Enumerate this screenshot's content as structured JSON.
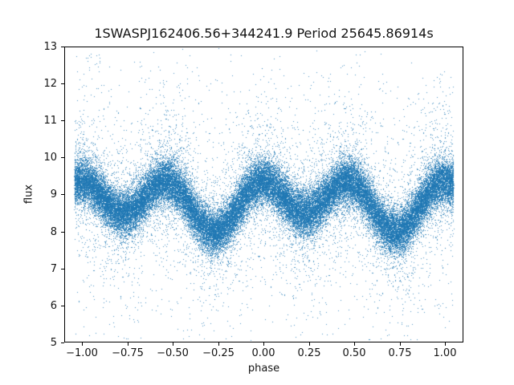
{
  "figure": {
    "title": "1SWASPJ162406.56+344241.9 Period 25645.86914s",
    "xlabel": "phase",
    "ylabel": "flux",
    "x_ticks": [
      "−1.00",
      "−0.75",
      "−0.50",
      "−0.25",
      "0.00",
      "0.25",
      "0.50",
      "0.75",
      "1.00"
    ],
    "y_ticks": [
      "13",
      "12",
      "11",
      "10",
      "9",
      "8",
      "7",
      "6",
      "5"
    ]
  },
  "chart_data": {
    "type": "scatter",
    "title": "1SWASPJ162406.56+344241.9 Period 25645.86914s",
    "xlabel": "phase",
    "ylabel": "flux",
    "xlim": [
      -1.1,
      1.1
    ],
    "ylim": [
      5,
      13
    ],
    "x_tick_values": [
      -1.0,
      -0.75,
      -0.5,
      -0.25,
      0.0,
      0.25,
      0.5,
      0.75,
      1.0
    ],
    "y_tick_values": [
      5,
      6,
      7,
      8,
      9,
      10,
      11,
      12,
      13
    ],
    "grid": false,
    "legend": null,
    "marker_color": "#1f77b4",
    "marker_alpha": 0.78,
    "marker_size_px": 1,
    "n_points_estimate": 58000,
    "data_phase_range": [
      -1.045,
      1.045
    ],
    "description": "Folded light curve of a contact eclipsing binary: dense blue band oscillating between flux ~8 and ~9.4 (double wave, period 0.5 in phase), with maxima near phase 0, ±0.5, ±1, deep minima near -0.27 and +0.73, shallow minima near -0.77 and +0.23, plus sparse noise outliers reaching flux ~12.7 above and ~5.2 below.",
    "band_center_samples": {
      "phase": [
        -1.0,
        -0.95,
        -0.9,
        -0.85,
        -0.8,
        -0.75,
        -0.7,
        -0.65,
        -0.6,
        -0.55,
        -0.5,
        -0.45,
        -0.4,
        -0.35,
        -0.3,
        -0.25,
        -0.2,
        -0.15,
        -0.1,
        -0.05,
        0.0,
        0.05,
        0.1,
        0.15,
        0.2,
        0.25,
        0.3,
        0.35,
        0.4,
        0.45,
        0.5,
        0.55,
        0.6,
        0.65,
        0.7,
        0.75,
        0.8,
        0.85,
        0.9,
        0.95,
        1.0
      ],
      "flux": [
        9.36,
        9.24,
        8.98,
        8.7,
        8.52,
        8.52,
        8.7,
        8.98,
        9.24,
        9.36,
        9.28,
        9.01,
        8.62,
        8.25,
        8.03,
        8.03,
        8.25,
        8.62,
        9.01,
        9.28,
        9.36,
        9.24,
        8.98,
        8.7,
        8.52,
        8.52,
        8.7,
        8.98,
        9.24,
        9.36,
        9.28,
        9.01,
        8.62,
        8.25,
        8.03,
        8.03,
        8.25,
        8.62,
        9.01,
        9.28,
        9.36
      ]
    },
    "render_model": {
      "formula": "flux_center(p) = 8.8 + 0.55*cos(4*PI*(p + 0.025)) + 0.25*cos(2*PI*(p - 0.225))",
      "mean": 8.8,
      "harmonic2": {
        "amplitude": 0.55,
        "phase_shift": -0.025
      },
      "harmonic1": {
        "amplitude": 0.25,
        "phase_shift": 0.225
      },
      "flux_clip": [
        5.05,
        12.95
      ],
      "noise_mixture": [
        {
          "fraction": 0.826,
          "sigma": 0.3
        },
        {
          "fraction": 0.07,
          "sigma": 0.55
        },
        {
          "fraction": 0.06,
          "sigma": 1.05
        },
        {
          "fraction": 0.04,
          "sigma": 1.9
        },
        {
          "fraction": 0.004,
          "uniform_flux_range": [
            5.1,
            12.9
          ]
        }
      ],
      "seed": 1234
    }
  }
}
